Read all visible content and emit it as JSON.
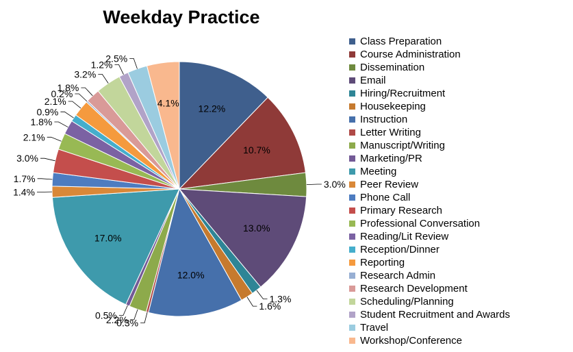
{
  "chart_data": {
    "type": "pie",
    "title": "Weekday Practice",
    "legend_position": "right",
    "slices": [
      {
        "label": "Class Preparation",
        "value": 12.2,
        "value_label": "12.2%",
        "color": "#3F5F8D"
      },
      {
        "label": "Course Administration",
        "value": 10.7,
        "value_label": "10.7%",
        "color": "#8F3A38"
      },
      {
        "label": "Dissemination",
        "value": 3.0,
        "value_label": "3.0%",
        "color": "#6E8A3E"
      },
      {
        "label": "Email",
        "value": 13.0,
        "value_label": "13.0%",
        "color": "#5E4B78"
      },
      {
        "label": "Hiring/Recruitment",
        "value": 1.3,
        "value_label": "1.3%",
        "color": "#2E8596"
      },
      {
        "label": "Housekeeping",
        "value": 1.6,
        "value_label": "1.6%",
        "color": "#C67A2E"
      },
      {
        "label": "Instruction",
        "value": 12.0,
        "value_label": "12.0%",
        "color": "#4670AB"
      },
      {
        "label": "Letter Writing",
        "value": 0.3,
        "value_label": "0.3%",
        "color": "#B04A47"
      },
      {
        "label": "Manuscript/Writing",
        "value": 2.2,
        "value_label": "2.2%",
        "color": "#8DAA4B"
      },
      {
        "label": "Marketing/PR",
        "value": 0.5,
        "value_label": "0.5%",
        "color": "#735A96"
      },
      {
        "label": "Meeting",
        "value": 17.0,
        "value_label": "17.0%",
        "color": "#3E9AAC"
      },
      {
        "label": "Peer Review",
        "value": 1.4,
        "value_label": "1.4%",
        "color": "#D98838"
      },
      {
        "label": "Phone Call",
        "value": 1.7,
        "value_label": "1.7%",
        "color": "#4D7CC0"
      },
      {
        "label": "Primary Research",
        "value": 3.0,
        "value_label": "3.0%",
        "color": "#C44E4C"
      },
      {
        "label": "Professional Conversation",
        "value": 2.1,
        "value_label": "2.1%",
        "color": "#98B954"
      },
      {
        "label": "Reading/Lit Review",
        "value": 1.8,
        "value_label": "1.8%",
        "color": "#7B62A3"
      },
      {
        "label": "Reception/Dinner",
        "value": 0.9,
        "value_label": "0.9%",
        "color": "#45AECC"
      },
      {
        "label": "Reporting",
        "value": 2.1,
        "value_label": "2.1%",
        "color": "#F59A3E"
      },
      {
        "label": "Research Admin",
        "value": 0.2,
        "value_label": "0.2%",
        "color": "#97AFD3"
      },
      {
        "label": "Research Development",
        "value": 1.8,
        "value_label": "1.8%",
        "color": "#D99A98"
      },
      {
        "label": "Scheduling/Planning",
        "value": 3.2,
        "value_label": "3.2%",
        "color": "#C2D69B"
      },
      {
        "label": "Student Recruitment and Awards",
        "value": 1.2,
        "value_label": "1.2%",
        "color": "#B1A3C8"
      },
      {
        "label": "Travel",
        "value": 2.5,
        "value_label": "2.5%",
        "color": "#9BCCE0"
      },
      {
        "label": "Workshop/Conference",
        "value": 4.1,
        "value_label": "4.1%",
        "color": "#F9B88E"
      }
    ]
  }
}
